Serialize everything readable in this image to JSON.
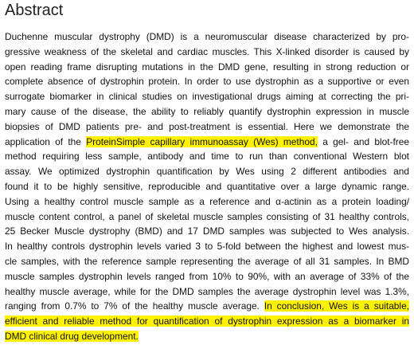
{
  "title": "Abstract",
  "lines": [
    [
      {
        "text": "Duchenne muscular dystrophy (DMD) is a neuromuscular disease characterized by pro-",
        "highlight": false
      }
    ],
    [
      {
        "text": "gressive weakness of the skeletal and cardiac muscles. This X-linked disorder is caused by",
        "highlight": false
      }
    ],
    [
      {
        "text": "open reading frame disrupting mutations in the DMD gene, resulting in strong reduction or",
        "highlight": false
      }
    ],
    [
      {
        "text": "complete absence of dystrophin protein. In order to use dystrophin as a supportive or even",
        "highlight": false
      }
    ],
    [
      {
        "text": "surrogate biomarker in clinical studies on investigational drugs aiming at correcting the pri-",
        "highlight": false
      }
    ],
    [
      {
        "text": "mary cause of the disease, the ability to reliably quantify dystrophin expression in muscle",
        "highlight": false
      }
    ],
    [
      {
        "text": "biopsies of DMD patients pre- and post-treatment is essential. Here we demonstrate the",
        "highlight": false
      }
    ],
    [
      {
        "text": "application of the",
        "highlight": false
      },
      {
        "text": "ProteinSimple capillary immunoassay (Wes) method,",
        "highlight": true
      },
      {
        "text": "a gel- and blot-free",
        "highlight": false
      }
    ],
    [
      {
        "text": "method requiring less sample, antibody and time to run than conventional Western blot",
        "highlight": false
      }
    ],
    [
      {
        "text": "assay. We optimized dystrophin quantification by Wes using 2 different antibodies and",
        "highlight": false
      }
    ],
    [
      {
        "text": "found it to be highly sensitive, reproducible and quantitative over a large dynamic range.",
        "highlight": false
      }
    ],
    [
      {
        "text": "Using a healthy control muscle sample as a reference and α-actinin as a protein loading/",
        "highlight": false
      }
    ],
    [
      {
        "text": "muscle content control, a panel of skeletal muscle samples consisting of 31 healthy controls,",
        "highlight": false
      }
    ],
    [
      {
        "text": "25 Becker Muscle dystrophy (BMD) and 17 DMD samples was subjected to Wes analysis.",
        "highlight": false
      }
    ],
    [
      {
        "text": "In healthy controls dystrophin levels varied 3 to 5-fold between the highest and lowest mus-",
        "highlight": false
      }
    ],
    [
      {
        "text": "cle samples, with the reference sample representing the average of all 31 samples. In BMD",
        "highlight": false
      }
    ],
    [
      {
        "text": "muscle samples dystrophin levels ranged from 10% to 90%, with an average of 33% of the",
        "highlight": false
      }
    ],
    [
      {
        "text": "healthy muscle average, while for the DMD samples the average dystrophin level was 1.3%,",
        "highlight": false
      }
    ],
    [
      {
        "text": "ranging from 0.7% to 7% of the healthy muscle average.",
        "highlight": false
      },
      {
        "text": "In conclusion, Wes is a suitable,",
        "highlight": true
      }
    ],
    [
      {
        "text": "efficient and reliable method for quantification of dystrophin expression as a biomarker in",
        "highlight": true
      }
    ],
    [
      {
        "text": "DMD clinical drug development.",
        "highlight": true
      }
    ]
  ]
}
